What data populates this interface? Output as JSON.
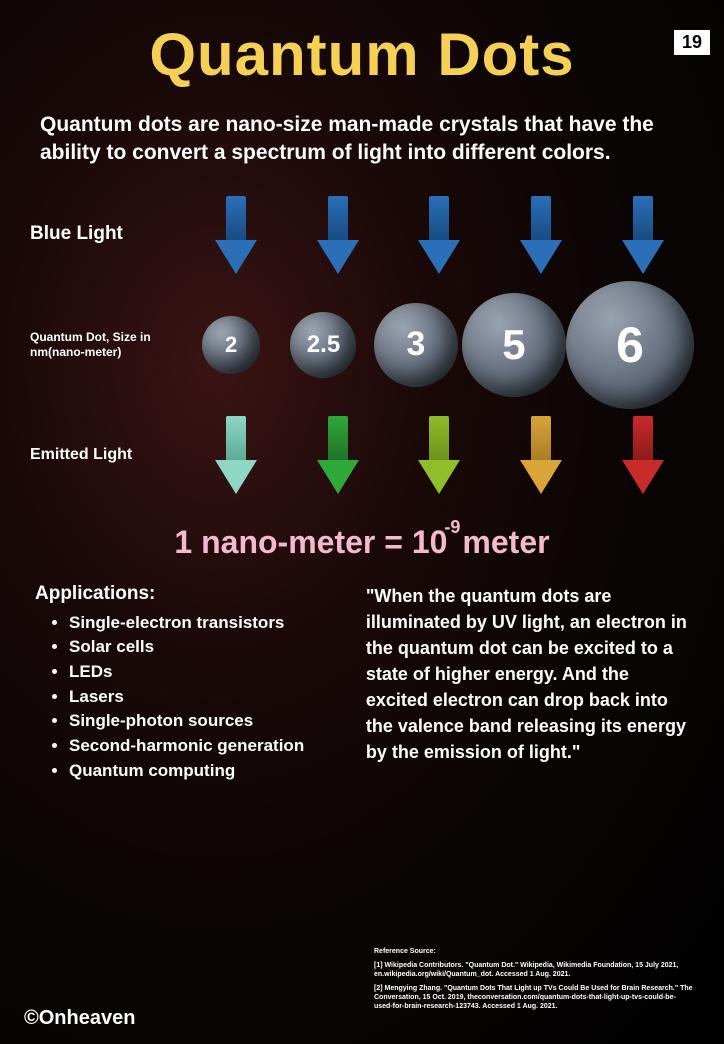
{
  "page_number": "19",
  "title": {
    "text": "Quantum Dots",
    "color": "#f4d155",
    "fontsize": 60
  },
  "intro": "Quantum dots are nano-size man-made crystals that have the ability to convert a spectrum of light into different colors.",
  "diagram": {
    "blue_light_label": "Blue Light",
    "size_label": "Quantum Dot, Size in nm(nano-meter)",
    "emitted_label": "Emitted Light",
    "input_arrow_color": "#2a6fb8",
    "input_arrow_shadow": "#174a80",
    "dots": [
      {
        "value": "2",
        "diameter": 58,
        "fontsize": 22
      },
      {
        "value": "2.5",
        "diameter": 66,
        "fontsize": 24
      },
      {
        "value": "3",
        "diameter": 84,
        "fontsize": 34
      },
      {
        "value": "5",
        "diameter": 104,
        "fontsize": 42
      },
      {
        "value": "6",
        "diameter": 128,
        "fontsize": 50
      }
    ],
    "dot_fill": "#6b7584",
    "emitted_colors": [
      {
        "main": "#8fd6c4",
        "shadow": "#5aa892"
      },
      {
        "main": "#2fa83a",
        "shadow": "#1e7026"
      },
      {
        "main": "#8fbe2a",
        "shadow": "#6a8f1c"
      },
      {
        "main": "#d9a438",
        "shadow": "#a87b24"
      },
      {
        "main": "#c92a2a",
        "shadow": "#8a1a1a"
      }
    ]
  },
  "equation": {
    "color": "#f3b9cf",
    "prefix": "1 nano-meter = 10",
    "exponent": "-9",
    "suffix": "meter"
  },
  "applications": {
    "heading": "Applications:",
    "items": [
      "Single-electron transistors",
      "Solar cells",
      "LEDs",
      "Lasers",
      "Single-photon sources",
      "Second-harmonic generation",
      "Quantum computing"
    ]
  },
  "quote": "\"When the quantum dots are illuminated by UV light, an electron in the quantum dot can be excited to a state of higher energy. And the excited electron can drop back into the valence band releasing its energy by the emission of light.\"",
  "references": {
    "heading": "Reference Source:",
    "items": [
      "[1] Wikipedia Contributors. \"Quantum Dot.\" Wikipedia, Wikimedia Foundation, 15 July 2021, en.wikipedia.org/wiki/Quantum_dot. Accessed 1 Aug. 2021.",
      "[2] Mengying Zhang. \"Quantum Dots That Light up TVs Could Be Used for Brain Research.\" The Conversation, 15 Oct. 2019, theconversation.com/quantum-dots-that-light-up-tvs-could-be-used-for-brain-research-123743. Accessed 1 Aug. 2021."
    ]
  },
  "copyright": "©Onheaven"
}
